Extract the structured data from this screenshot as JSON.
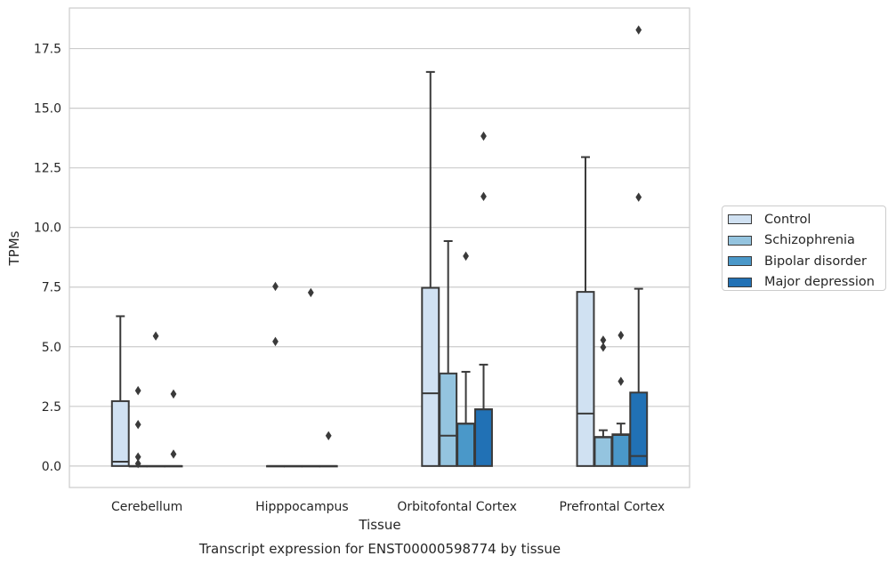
{
  "chart_data": {
    "type": "box",
    "title": "Transcript expression for ENST00000598774 by tissue",
    "xlabel": "Tissue",
    "ylabel": "TPMs",
    "ylim": [
      -0.9,
      19.2
    ],
    "yticks": [
      "0.0",
      "2.5",
      "5.0",
      "7.5",
      "10.0",
      "12.5",
      "15.0",
      "17.5"
    ],
    "ytick_values": [
      0,
      2.5,
      5,
      7.5,
      10,
      12.5,
      15,
      17.5
    ],
    "grid": "horizontal",
    "legend_position": "right",
    "categories": [
      "Cerebellum",
      "Hipppocampus",
      "Orbitofontal Cortex",
      "Prefrontal Cortex"
    ],
    "series": [
      {
        "name": "Control",
        "color": "#d0e1f2",
        "boxes": [
          {
            "q1": 0,
            "median": 0.18,
            "q3": 2.72,
            "whisker_low": 0,
            "whisker_high": 6.28,
            "outliers": []
          },
          {
            "q1": 0,
            "median": 0,
            "q3": 0,
            "whisker_low": 0,
            "whisker_high": 0,
            "outliers": [
              5.22,
              7.53
            ]
          },
          {
            "q1": 0,
            "median": 3.05,
            "q3": 7.47,
            "whisker_low": 0,
            "whisker_high": 16.52,
            "outliers": []
          },
          {
            "q1": 0,
            "median": 2.2,
            "q3": 7.3,
            "whisker_low": 0,
            "whisker_high": 12.95,
            "outliers": []
          }
        ]
      },
      {
        "name": "Schizophrenia",
        "color": "#94c4df",
        "boxes": [
          {
            "q1": 0,
            "median": 0,
            "q3": 0,
            "whisker_low": 0,
            "whisker_high": 0,
            "outliers": [
              0.1,
              0.38,
              1.74,
              3.16
            ]
          },
          {
            "q1": 0,
            "median": 0,
            "q3": 0,
            "whisker_low": 0,
            "whisker_high": 0,
            "outliers": []
          },
          {
            "q1": 0,
            "median": 1.27,
            "q3": 3.88,
            "whisker_low": 0,
            "whisker_high": 9.43,
            "outliers": []
          },
          {
            "q1": 0,
            "median": 1.2,
            "q3": 1.22,
            "whisker_low": 0,
            "whisker_high": 1.5,
            "outliers": [
              4.98,
              5.28
            ]
          }
        ]
      },
      {
        "name": "Bipolar disorder",
        "color": "#4a98c9",
        "boxes": [
          {
            "q1": 0,
            "median": 0,
            "q3": 0,
            "whisker_low": 0,
            "whisker_high": 0,
            "outliers": [
              5.45
            ]
          },
          {
            "q1": 0,
            "median": 0,
            "q3": 0,
            "whisker_low": 0,
            "whisker_high": 0,
            "outliers": [
              7.27
            ]
          },
          {
            "q1": 0,
            "median": 1.77,
            "q3": 1.78,
            "whisker_low": 0,
            "whisker_high": 3.95,
            "outliers": [
              8.8
            ]
          },
          {
            "q1": 0,
            "median": 1.3,
            "q3": 1.33,
            "whisker_low": 0,
            "whisker_high": 1.78,
            "outliers": [
              3.55,
              5.48
            ]
          }
        ]
      },
      {
        "name": "Major depression",
        "color": "#2171b5",
        "boxes": [
          {
            "q1": 0,
            "median": 0,
            "q3": 0,
            "whisker_low": 0,
            "whisker_high": 0,
            "outliers": [
              0.5,
              3.02
            ]
          },
          {
            "q1": 0,
            "median": 0,
            "q3": 0,
            "whisker_low": 0,
            "whisker_high": 0,
            "outliers": [
              1.27
            ]
          },
          {
            "q1": 0,
            "median": 2.37,
            "q3": 2.38,
            "whisker_low": 0,
            "whisker_high": 4.25,
            "outliers": [
              11.3,
              13.83
            ]
          },
          {
            "q1": 0,
            "median": 0.42,
            "q3": 3.08,
            "whisker_low": 0,
            "whisker_high": 7.43,
            "outliers": [
              11.27,
              18.28
            ]
          }
        ]
      }
    ]
  }
}
